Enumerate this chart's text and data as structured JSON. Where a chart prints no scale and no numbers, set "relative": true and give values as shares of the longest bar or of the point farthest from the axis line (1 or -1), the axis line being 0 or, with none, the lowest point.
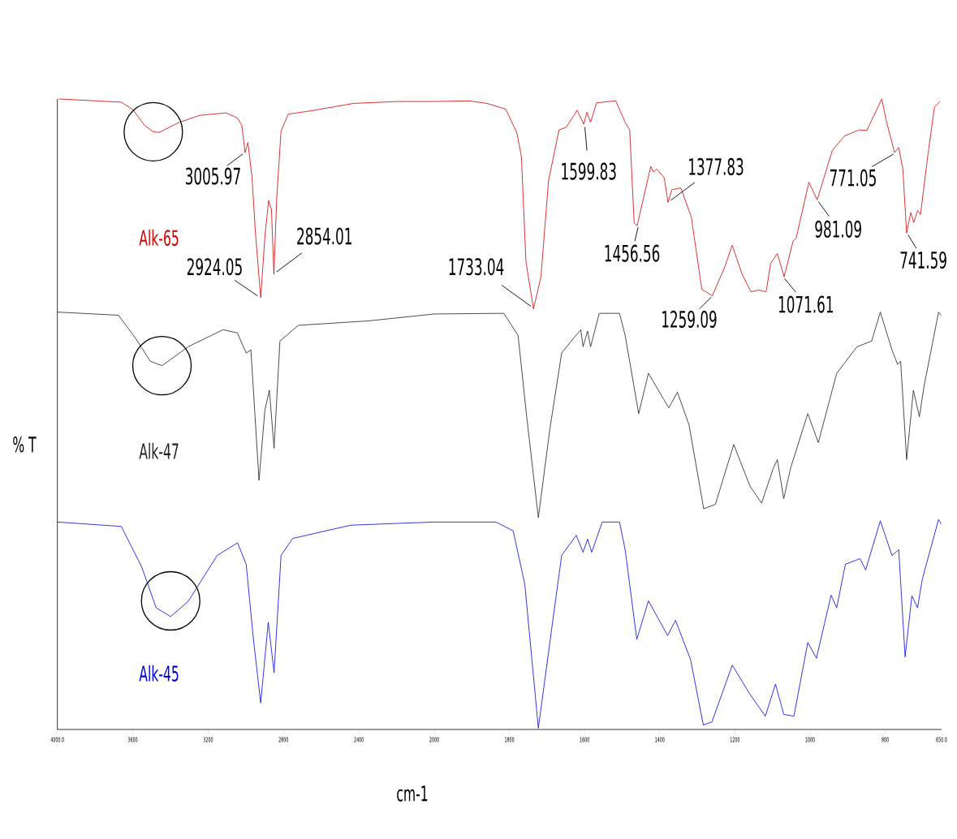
{
  "chart_data": [
    {
      "type": "line",
      "relative": true,
      "ylabel": "% T",
      "xlabel": "cm-1",
      "xlim": [
        4000,
        2000
      ],
      "xticks": [
        {
          "value": 4000,
          "label": "4000.0"
        },
        3600,
        3200,
        2800,
        2400
      ],
      "series": [
        {
          "name": "Alk-65",
          "color": "#d00000",
          "x": [
            3992,
            3662,
            3599,
            3537,
            3491,
            3460,
            3353,
            3245,
            3106,
            3045,
            3021,
            3004,
            2989,
            2967,
            2949,
            2921,
            2898,
            2879,
            2864,
            2851,
            2836,
            2813,
            2775,
            2659,
            2428,
            2196,
            2000
          ],
          "values": [
            1,
            0.995,
            0.983,
            0.958,
            0.948,
            0.947,
            0.963,
            0.974,
            0.978,
            0.97,
            0.958,
            0.915,
            0.931,
            0.875,
            0.788,
            0.685,
            0.784,
            0.839,
            0.825,
            0.722,
            0.843,
            0.949,
            0.976,
            0.981,
            0.993,
            0.996,
            0.996
          ]
        },
        {
          "name": "Alk-47",
          "color": "#202020",
          "x": [
            4000,
            3676,
            3584,
            3507,
            3445,
            3306,
            3121,
            3045,
            2998,
            2973,
            2930,
            2899,
            2875,
            2850,
            2819,
            2721,
            2350,
            2000
          ],
          "values": [
            0.662,
            0.657,
            0.62,
            0.584,
            0.577,
            0.607,
            0.634,
            0.629,
            0.597,
            0.602,
            0.395,
            0.506,
            0.538,
            0.446,
            0.616,
            0.641,
            0.648,
            0.659
          ]
        },
        {
          "name": "Alk-45",
          "color": "#0000e0",
          "x": [
            4000,
            3661,
            3553,
            3476,
            3399,
            3306,
            3152,
            3044,
            2998,
            2961,
            2921,
            2881,
            2850,
            2813,
            2751,
            2443,
            2000
          ],
          "values": [
            0.329,
            0.322,
            0.258,
            0.193,
            0.179,
            0.203,
            0.276,
            0.296,
            0.262,
            0.147,
            0.042,
            0.17,
            0.09,
            0.276,
            0.303,
            0.324,
            0.329
          ]
        }
      ],
      "annotations": [
        {
          "text": "3005.97",
          "x": 3005.97,
          "y": 0.915
        },
        {
          "text": "2924.05",
          "x": 2924.05,
          "y": 0.685
        },
        {
          "text": "2854.01",
          "x": 2854.01,
          "y": 0.722
        }
      ]
    },
    {
      "type": "line",
      "relative": true,
      "xlim": [
        2000,
        650
      ],
      "xticks": [
        2000,
        1800,
        1600,
        1400,
        1200,
        1000,
        800,
        {
          "value": 650,
          "label": "650.0"
        }
      ],
      "series": [
        {
          "color": "#d00000",
          "x": [
            2000,
            1907,
            1860,
            1810,
            1780,
            1768,
            1756,
            1736,
            1716,
            1696,
            1668,
            1649,
            1620,
            1602,
            1594,
            1584,
            1568,
            1517,
            1492,
            1480,
            1468,
            1460,
            1424,
            1416,
            1408,
            1388,
            1378,
            1368,
            1344,
            1316,
            1288,
            1260,
            1228,
            1207,
            1181,
            1157,
            1137,
            1117,
            1105,
            1087,
            1069,
            1045,
            1037,
            1003,
            981,
            941,
            909,
            869,
            849,
            809,
            797,
            775,
            764,
            753,
            743,
            732,
            724,
            714,
            706,
            686,
            669,
            654
          ],
          "values": [
            0.996,
            0.997,
            0.993,
            0.984,
            0.946,
            0.908,
            0.742,
            0.667,
            0.718,
            0.87,
            0.951,
            0.955,
            0.982,
            0.96,
            0.979,
            0.963,
            0.994,
            0.997,
            0.963,
            0.951,
            0.803,
            0.799,
            0.893,
            0.884,
            0.889,
            0.875,
            0.836,
            0.856,
            0.859,
            0.813,
            0.698,
            0.688,
            0.732,
            0.768,
            0.722,
            0.694,
            0.697,
            0.694,
            0.739,
            0.755,
            0.718,
            0.775,
            0.779,
            0.868,
            0.84,
            0.918,
            0.941,
            0.951,
            0.95,
            1,
            0.965,
            0.915,
            0.923,
            0.889,
            0.787,
            0.82,
            0.804,
            0.823,
            0.817,
            0.913,
            0.987,
            0.996
          ]
        },
        {
          "color": "#202020",
          "x": [
            2000,
            1815,
            1777,
            1754,
            1723,
            1692,
            1661,
            1630,
            1610,
            1604,
            1592,
            1584,
            1561,
            1507,
            1492,
            1456,
            1430,
            1376,
            1353,
            1322,
            1283,
            1252,
            1203,
            1160,
            1129,
            1098,
            1087,
            1070,
            1052,
            1006,
            978,
            929,
            875,
            836,
            813,
            782,
            767,
            759,
            743,
            725,
            709,
            697,
            658,
            651
          ],
          "values": [
            0.659,
            0.66,
            0.625,
            0.496,
            0.336,
            0.478,
            0.597,
            0.62,
            0.634,
            0.607,
            0.632,
            0.607,
            0.66,
            0.66,
            0.625,
            0.501,
            0.565,
            0.51,
            0.535,
            0.483,
            0.35,
            0.357,
            0.452,
            0.386,
            0.359,
            0.414,
            0.428,
            0.366,
            0.414,
            0.501,
            0.455,
            0.565,
            0.607,
            0.616,
            0.662,
            0.602,
            0.579,
            0.584,
            0.428,
            0.538,
            0.496,
            0.543,
            0.662,
            0.657
          ]
        },
        {
          "color": "#0000e0",
          "x": [
            2000,
            1836,
            1790,
            1759,
            1723,
            1684,
            1661,
            1622,
            1604,
            1592,
            1581,
            1553,
            1507,
            1492,
            1461,
            1430,
            1379,
            1358,
            1318,
            1284,
            1261,
            1207,
            1160,
            1119,
            1092,
            1070,
            1043,
            1006,
            983,
            944,
            929,
            906,
            867,
            852,
            813,
            782,
            764,
            747,
            729,
            714,
            701,
            658,
            651
          ],
          "values": [
            0.329,
            0.329,
            0.315,
            0.23,
            0.002,
            0.175,
            0.276,
            0.308,
            0.281,
            0.302,
            0.281,
            0.329,
            0.329,
            0.285,
            0.143,
            0.204,
            0.149,
            0.173,
            0.111,
            0.007,
            0.012,
            0.102,
            0.056,
            0.021,
            0.072,
            0.024,
            0.021,
            0.138,
            0.113,
            0.213,
            0.193,
            0.262,
            0.271,
            0.253,
            0.331,
            0.276,
            0.285,
            0.115,
            0.212,
            0.193,
            0.239,
            0.333,
            0.326
          ]
        }
      ],
      "annotations": [
        {
          "text": "1733.04",
          "x": 1733.04,
          "y": 0.667
        },
        {
          "text": "1599.83",
          "x": 1599.83,
          "y": 0.96
        },
        {
          "text": "1456.56",
          "x": 1456.56,
          "y": 0.799
        },
        {
          "text": "1377.83",
          "x": 1377.83,
          "y": 0.836
        },
        {
          "text": "1259.09",
          "x": 1259.09,
          "y": 0.688
        },
        {
          "text": "1071.61",
          "x": 1071.61,
          "y": 0.718
        },
        {
          "text": "981.09",
          "x": 981.09,
          "y": 0.84
        },
        {
          "text": "771.05",
          "x": 771.05,
          "y": 0.915
        },
        {
          "text": "741.59",
          "x": 741.59,
          "y": 0.787
        }
      ]
    }
  ]
}
